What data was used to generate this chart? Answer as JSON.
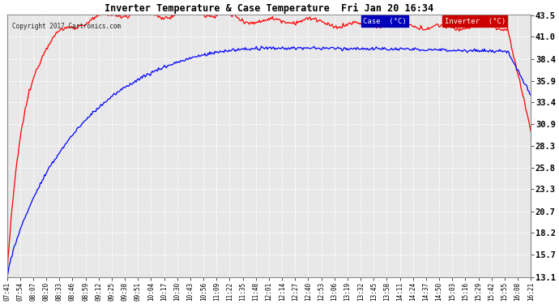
{
  "title": "Inverter Temperature & Case Temperature  Fri Jan 20 16:34",
  "copyright": "Copyright 2017 Cartronics.com",
  "background_color": "#ffffff",
  "plot_bg_color": "#e8e8e8",
  "grid_color": "#ffffff",
  "yticks": [
    13.1,
    15.7,
    18.2,
    20.7,
    23.3,
    25.8,
    28.3,
    30.9,
    33.4,
    35.9,
    38.4,
    41.0,
    43.5
  ],
  "ymin": 13.1,
  "ymax": 43.5,
  "case_color": "#0000ff",
  "case_bg": "#0000bb",
  "inverter_color": "#ff0000",
  "inverter_bg": "#cc0000",
  "case_label": "Case  (°C)",
  "inverter_label": "Inverter  (°C)",
  "xtick_labels": [
    "07:41",
    "07:54",
    "08:07",
    "08:20",
    "08:33",
    "08:46",
    "08:59",
    "09:12",
    "09:25",
    "09:38",
    "09:51",
    "10:04",
    "10:17",
    "10:30",
    "10:43",
    "10:56",
    "11:09",
    "11:22",
    "11:35",
    "11:48",
    "12:01",
    "12:14",
    "12:27",
    "12:40",
    "12:53",
    "13:06",
    "13:19",
    "13:32",
    "13:45",
    "13:58",
    "14:11",
    "14:24",
    "14:37",
    "14:50",
    "15:03",
    "15:16",
    "15:29",
    "15:42",
    "15:55",
    "16:08",
    "16:21"
  ]
}
